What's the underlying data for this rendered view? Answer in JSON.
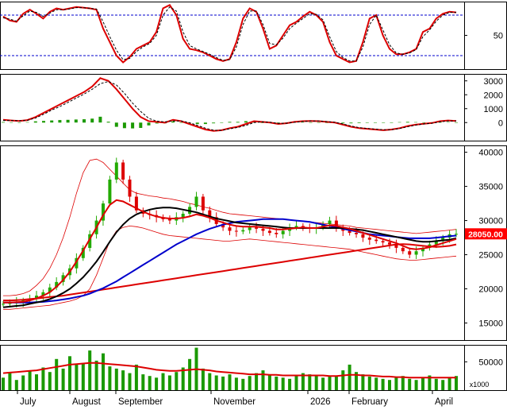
{
  "chart_data": [
    {
      "panel": "stochastic",
      "type": "line",
      "y_ticks": [
        50
      ],
      "ylim": [
        0,
        100
      ],
      "reference_lines": [
        80,
        20
      ],
      "series": [
        {
          "color": "#dd0000",
          "values": [
            78,
            72,
            70,
            82,
            88,
            82,
            75,
            85,
            90,
            88,
            90,
            92,
            91,
            90,
            88,
            60,
            40,
            20,
            10,
            18,
            30,
            35,
            40,
            55,
            90,
            95,
            80,
            45,
            30,
            28,
            25,
            20,
            15,
            12,
            15,
            40,
            75,
            90,
            85,
            60,
            30,
            35,
            50,
            65,
            70,
            78,
            85,
            80,
            70,
            40,
            20,
            15,
            10,
            12,
            40,
            75,
            80,
            50,
            30,
            22,
            22,
            25,
            30,
            55,
            60,
            75,
            82,
            85,
            84
          ]
        },
        {
          "color": "#000000",
          "dashed": true,
          "values": [
            76,
            74,
            71,
            79,
            86,
            84,
            78,
            83,
            88,
            88,
            89,
            91,
            91,
            90,
            89,
            70,
            48,
            28,
            14,
            16,
            26,
            33,
            38,
            50,
            80,
            92,
            86,
            55,
            35,
            30,
            26,
            22,
            17,
            13,
            14,
            33,
            66,
            86,
            86,
            66,
            38,
            36,
            46,
            60,
            68,
            75,
            82,
            81,
            73,
            48,
            26,
            17,
            12,
            12,
            33,
            66,
            80,
            58,
            36,
            24,
            22,
            24,
            29,
            48,
            58,
            71,
            80,
            84,
            84
          ]
        }
      ]
    },
    {
      "panel": "macd",
      "type": "line",
      "y_ticks": [
        3000,
        2000,
        1000,
        0
      ],
      "ylim": [
        -1300,
        3500
      ],
      "series": [
        {
          "color": "#dd0000",
          "values": [
            200,
            150,
            120,
            180,
            400,
            700,
            1000,
            1300,
            1600,
            1900,
            2200,
            2600,
            3200,
            3000,
            2400,
            1700,
            1000,
            400,
            100,
            50,
            0,
            200,
            100,
            -100,
            -300,
            -500,
            -600,
            -550,
            -400,
            -300,
            -100,
            100,
            50,
            0,
            -100,
            -50,
            50,
            100,
            120,
            100,
            50,
            0,
            -150,
            -300,
            -400,
            -450,
            -500,
            -550,
            -500,
            -400,
            -250,
            -150,
            -80,
            -30,
            100,
            150,
            120
          ]
        },
        {
          "color": "#000000",
          "dashed": true,
          "values": [
            150,
            150,
            130,
            160,
            330,
            600,
            900,
            1150,
            1450,
            1750,
            2050,
            2400,
            2800,
            2950,
            2700,
            2100,
            1400,
            800,
            300,
            100,
            50,
            120,
            120,
            0,
            -200,
            -400,
            -550,
            -560,
            -450,
            -350,
            -200,
            0,
            50,
            20,
            -60,
            -50,
            20,
            70,
            110,
            110,
            70,
            20,
            -100,
            -250,
            -360,
            -420,
            -470,
            -520,
            -510,
            -430,
            -300,
            -180,
            -100,
            -50,
            50,
            120,
            120
          ]
        },
        {
          "color": "#1a9900",
          "type": "histogram",
          "values": [
            40,
            20,
            10,
            30,
            90,
            120,
            150,
            180,
            200,
            220,
            240,
            280,
            420,
            60,
            -300,
            -400,
            -420,
            -380,
            -200,
            -60,
            -50,
            80,
            -20,
            -100,
            -100,
            -100,
            -50,
            10,
            50,
            50,
            100,
            100,
            0,
            -20,
            -40,
            0,
            30,
            30,
            10,
            -10,
            -20,
            -20,
            -50,
            -50,
            -40,
            -30,
            -30,
            -30,
            10,
            30,
            50,
            30,
            20,
            20,
            50,
            30,
            0
          ]
        }
      ]
    },
    {
      "panel": "price",
      "type": "candlestick",
      "y_ticks": [
        40000,
        35000,
        30000,
        25000,
        20000,
        15000
      ],
      "ylim": [
        12500,
        41000
      ],
      "last_price_label": "28050.00",
      "closes": [
        17800,
        17900,
        18100,
        18300,
        18600,
        19000,
        19500,
        20200,
        21000,
        22000,
        23000,
        24500,
        26000,
        28000,
        30000,
        32500,
        36000,
        38500,
        36000,
        33500,
        31500,
        31000,
        30800,
        30500,
        30200,
        30000,
        30500,
        31000,
        32000,
        33500,
        31500,
        30500,
        29500,
        29000,
        28500,
        28400,
        28600,
        29000,
        28800,
        28500,
        28200,
        28000,
        28500,
        29000,
        29200,
        29000,
        28800,
        29000,
        29500,
        30000,
        29000,
        28500,
        28200,
        28000,
        27500,
        27200,
        27000,
        26800,
        26500,
        26000,
        25500,
        25000,
        25500,
        26000,
        26500,
        27000,
        27500,
        28000,
        28050
      ],
      "bollinger_upper": [
        19000,
        19000,
        19100,
        19300,
        19700,
        20500,
        21500,
        23000,
        25000,
        27500,
        30500,
        34000,
        37000,
        38800,
        39000,
        38500,
        37500,
        36500,
        35500,
        34500,
        34000,
        33800,
        33600,
        33500,
        33300,
        33200,
        33000,
        32800,
        32500,
        32300,
        32000,
        31800,
        31500,
        31200,
        31000,
        30900,
        30800,
        30700,
        30600,
        30500,
        30400,
        30300,
        30200,
        30100,
        30000,
        29900,
        29800,
        29700,
        29600,
        29500,
        29400,
        29300,
        29200,
        29000,
        28900,
        28800,
        28700,
        28600,
        28500,
        28400,
        28300,
        28200,
        28100,
        28200,
        28300,
        28400,
        28500,
        28600,
        28700
      ],
      "bollinger_lower": [
        17000,
        17000,
        17100,
        17200,
        17300,
        17400,
        17500,
        17600,
        17800,
        18000,
        18200,
        18500,
        19000,
        20000,
        22000,
        24500,
        27000,
        28500,
        29000,
        29200,
        29100,
        28900,
        28600,
        28300,
        28000,
        27800,
        27700,
        27600,
        27500,
        27400,
        27300,
        27200,
        27100,
        27000,
        27000,
        27100,
        27200,
        27300,
        27200,
        27100,
        27000,
        26900,
        26800,
        26700,
        26600,
        26500,
        26400,
        26300,
        26200,
        26100,
        26000,
        25900,
        25800,
        25600,
        25400,
        25200,
        25000,
        24800,
        24600,
        24400,
        24300,
        24200,
        24200,
        24300,
        24400,
        24500,
        24600,
        24700,
        24800
      ],
      "ma_short": [
        18000,
        18000,
        18050,
        18100,
        18300,
        18600,
        19000,
        19500,
        20300,
        21300,
        22500,
        24000,
        25600,
        27300,
        29000,
        30800,
        32300,
        33000,
        32800,
        32300,
        31800,
        31300,
        30900,
        30600,
        30400,
        30300,
        30300,
        30400,
        30600,
        30900,
        30700,
        30400,
        30000,
        29700,
        29400,
        29200,
        29100,
        29100,
        29100,
        29000,
        28900,
        28700,
        28700,
        28800,
        28900,
        29000,
        28900,
        28900,
        29100,
        29300,
        29200,
        29000,
        28800,
        28500,
        28200,
        27900,
        27600,
        27300,
        27000,
        26700,
        26300,
        25900,
        25800,
        25900,
        26100,
        26400,
        26700,
        27000,
        27300
      ],
      "ma_mid": [
        17300,
        17400,
        17500,
        17600,
        17800,
        18000,
        18200,
        18500,
        18900,
        19400,
        20000,
        20800,
        21700,
        22800,
        24000,
        25400,
        26900,
        28300,
        29400,
        30300,
        30900,
        31300,
        31600,
        31800,
        31900,
        31900,
        31800,
        31600,
        31400,
        31200,
        30900,
        30600,
        30300,
        30100,
        29900,
        29700,
        29600,
        29500,
        29400,
        29300,
        29200,
        29100,
        29000,
        28900,
        28900,
        28900,
        28900,
        28900,
        28900,
        28900,
        28900,
        28900,
        28800,
        28700,
        28600,
        28400,
        28200,
        28000,
        27800,
        27600,
        27400,
        27200,
        27000,
        26900,
        26900,
        27000,
        27100,
        27200,
        27400
      ],
      "ma_long": [
        18000,
        18000,
        18000,
        18000,
        18000,
        18050,
        18100,
        18200,
        18300,
        18450,
        18600,
        18800,
        19000,
        19300,
        19700,
        20100,
        20600,
        21100,
        21700,
        22300,
        22900,
        23500,
        24100,
        24700,
        25300,
        25900,
        26500,
        27000,
        27500,
        28000,
        28400,
        28800,
        29100,
        29400,
        29600,
        29800,
        29900,
        30000,
        30100,
        30200,
        30200,
        30200,
        30200,
        30100,
        30000,
        29900,
        29800,
        29600,
        29400,
        29200,
        29000,
        28800,
        28600,
        28400,
        28200,
        28000,
        27900,
        27800,
        27700,
        27600,
        27500,
        27400,
        27400,
        27400,
        27400,
        27500,
        27600,
        27700,
        27800
      ],
      "ma_200": [
        18300,
        18300,
        18350,
        18400,
        18500,
        18600,
        18700,
        18800,
        18900,
        19000,
        19150,
        19300,
        19450,
        19600,
        19750,
        19900,
        20050,
        20200,
        20350,
        20500,
        20650,
        20800,
        20950,
        21100,
        21250,
        21400,
        21550,
        21700,
        21850,
        22000,
        22150,
        22300,
        22450,
        22600,
        22750,
        22900,
        23050,
        23200,
        23350,
        23500,
        23650,
        23800,
        23950,
        24100,
        24250,
        24400,
        24550,
        24700,
        24850,
        25000,
        25150,
        25300,
        25450,
        25600,
        25750,
        25900,
        26050,
        26200,
        26350,
        26500,
        26550,
        26500,
        26400,
        26300,
        26200,
        26150,
        26200,
        26300,
        26500
      ]
    },
    {
      "panel": "volume",
      "type": "bar",
      "unit_label": "x1000",
      "y_ticks": [
        50000
      ],
      "ylim": [
        0,
        80000
      ],
      "values": [
        22000,
        30000,
        18000,
        26000,
        35000,
        28000,
        40000,
        32000,
        55000,
        38000,
        60000,
        45000,
        48000,
        70000,
        52000,
        65000,
        42000,
        38000,
        35000,
        30000,
        45000,
        28000,
        25000,
        22000,
        30000,
        26000,
        32000,
        40000,
        55000,
        75000,
        38000,
        30000,
        26000,
        24000,
        28000,
        22000,
        20000,
        25000,
        30000,
        35000,
        28000,
        24000,
        22000,
        20000,
        26000,
        30000,
        28000,
        25000,
        22000,
        24000,
        26000,
        35000,
        45000,
        32000,
        28000,
        24000,
        22000,
        20000,
        18000,
        22000,
        25000,
        20000,
        18000,
        22000,
        26000,
        20000,
        18000,
        22000,
        25000
      ],
      "ma_values": [
        30000,
        31000,
        32000,
        33000,
        34000,
        35000,
        37000,
        39000,
        41000,
        43000,
        45000,
        46000,
        47000,
        48000,
        48000,
        47000,
        46000,
        45000,
        44000,
        43000,
        42000,
        40000,
        38000,
        36000,
        35000,
        34000,
        34000,
        35000,
        36000,
        37000,
        36000,
        35000,
        33000,
        32000,
        31000,
        30000,
        29000,
        28000,
        28000,
        28000,
        27000,
        27000,
        26000,
        26000,
        26000,
        26000,
        26000,
        26000,
        26000,
        25000,
        25000,
        26000,
        27000,
        27000,
        26000,
        26000,
        25000,
        24000,
        24000,
        23000,
        23000,
        22000,
        22000,
        22000,
        22000,
        22000,
        22000,
        22000,
        22000
      ]
    }
  ],
  "x_axis": {
    "labels": [
      "July",
      "August",
      "September",
      "November",
      "2026",
      "February",
      "April"
    ]
  },
  "colors": {
    "candle_up": "#22aa00",
    "candle_down": "#dd0000",
    "bollinger": "#dd0000",
    "ma_short": "#dd0000",
    "ma_mid": "#000000",
    "ma_long": "#0000cc",
    "ma_200": "#dd0000",
    "volume_bar": "#1a9900",
    "volume_ma": "#dd0000",
    "reference_line": "#0000cc",
    "price_label_bg": "#ff0000",
    "price_label_text": "#ffffff"
  }
}
